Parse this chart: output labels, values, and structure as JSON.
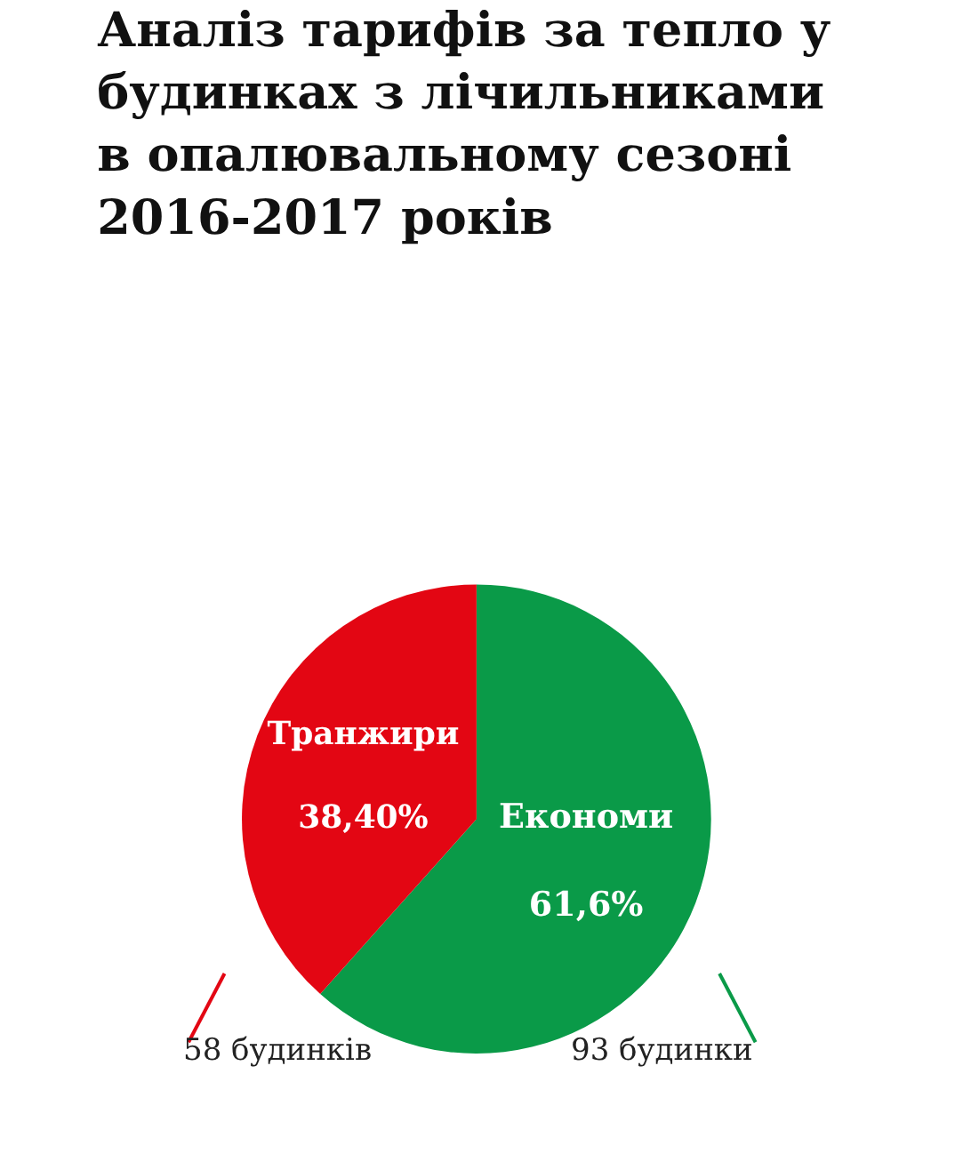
{
  "chart_data": {
    "type": "pie",
    "title": "Аналіз тарифів за тепло у\nбудинках з лічильниками\nв опалювальному сезоні\n2016-2017 років",
    "categories": [
      "Економи",
      "Транжири"
    ],
    "values": [
      61.6,
      38.4
    ],
    "value_labels": [
      "61,6%",
      "38,40%"
    ],
    "colors": [
      "#0a9a48",
      "#e30613"
    ],
    "annotations": [
      "93 будинки",
      "58 будинків"
    ],
    "legend": false
  }
}
